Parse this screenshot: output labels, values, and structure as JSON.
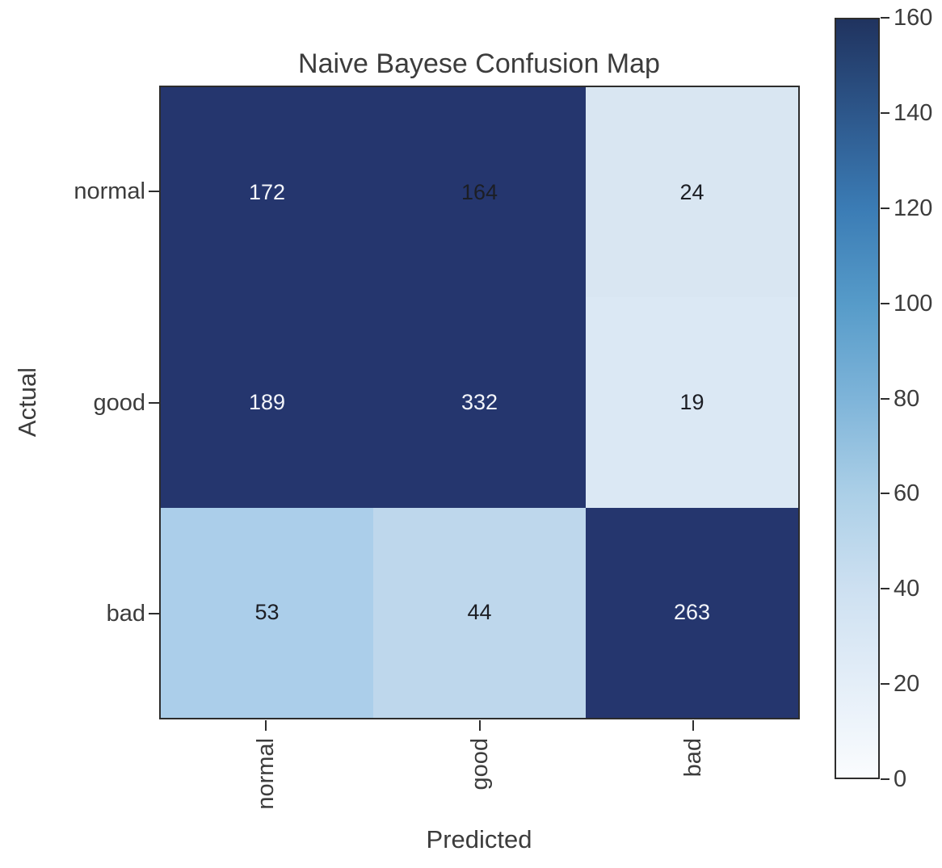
{
  "chart_data": {
    "type": "heatmap",
    "title": "Naive Bayese Confusion Map",
    "xlabel": "Predicted",
    "ylabel": "Actual",
    "x_categories": [
      "normal",
      "good",
      "bad"
    ],
    "y_categories": [
      "normal",
      "good",
      "bad"
    ],
    "matrix": [
      [
        172,
        164,
        24
      ],
      [
        189,
        332,
        19
      ],
      [
        53,
        44,
        263
      ]
    ],
    "colormap": "Blues",
    "colorbar": {
      "min": 0,
      "max": 160,
      "ticks": [
        0,
        20,
        40,
        60,
        80,
        100,
        120,
        140,
        160
      ],
      "position": "right"
    },
    "grid": false,
    "x_tick_rotation_degrees": 90
  },
  "style": {
    "background": "#ffffff",
    "text_color": "#3c3c3c",
    "spine_color": "#2d2d2d",
    "cell_dark_text": "#1c1e24",
    "cell_light_text": "#f3f5fa",
    "cell_colors": [
      [
        "#25366e",
        "#25366e",
        "#d9e6f2"
      ],
      [
        "#25366e",
        "#25366e",
        "#dbe8f4"
      ],
      [
        "#abceea",
        "#bed7ec",
        "#25366e"
      ]
    ],
    "cell_text_colors": [
      [
        "#f3f5fa",
        "#1c1e24",
        "#1c1e24"
      ],
      [
        "#f3f5fa",
        "#f3f5fa",
        "#1c1e24"
      ],
      [
        "#1c1e24",
        "#1c1e24",
        "#f3f5fa"
      ]
    ],
    "gradient_stops_bottom_to_top": [
      "#fafcfe",
      "#e4eef8",
      "#cde0f1",
      "#abcfe7",
      "#7eb4d9",
      "#569bc9",
      "#3b7cb5",
      "#2d578b",
      "#20335f"
    ]
  }
}
